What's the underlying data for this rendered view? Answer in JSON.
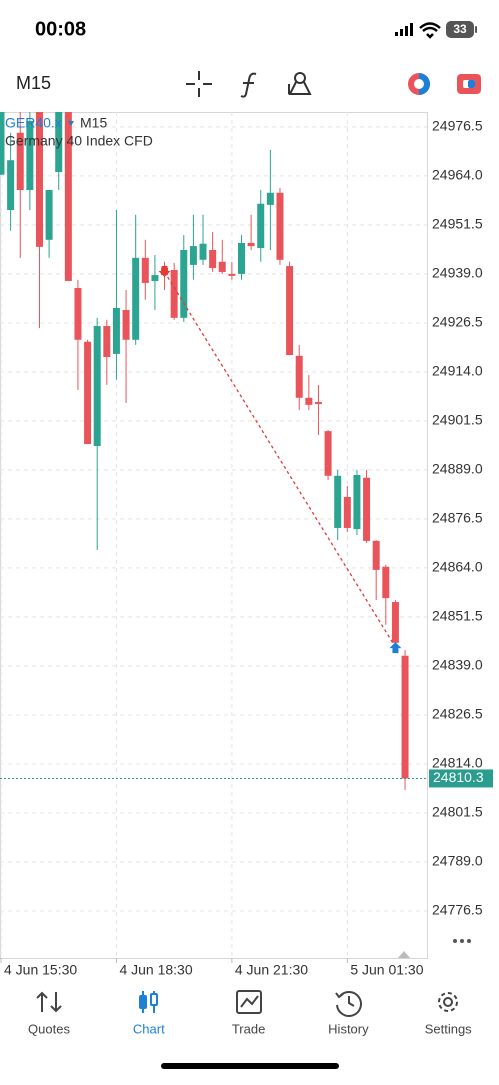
{
  "status_bar": {
    "time": "00:08",
    "battery": "33"
  },
  "toolbar": {
    "timeframe": "M15"
  },
  "chart_data": {
    "type": "candlestick",
    "symbol": "GER40.x",
    "timeframe": "M15",
    "description": "Germany 40 Index CFD",
    "categories": [
      "4 Jun 15:30",
      null,
      null,
      null,
      null,
      null,
      null,
      null,
      null,
      null,
      null,
      null,
      "4 Jun 18:30",
      null,
      null,
      null,
      null,
      null,
      null,
      null,
      null,
      null,
      null,
      null,
      "4 Jun 21:30",
      null,
      null,
      null,
      null,
      null,
      null,
      null,
      null,
      null,
      null,
      null,
      "5 Jun 01:30",
      null,
      null,
      null,
      null,
      null,
      null
    ],
    "open": [
      24964.3,
      24955.3,
      24975.0,
      24960.4,
      24980.3,
      24947.7,
      24965.0,
      24980.3,
      24935.4,
      24921.7,
      24895.1,
      24925.7,
      24918.6,
      24929.8,
      24922.2,
      24943.1,
      24937.2,
      24940.5,
      24940.0,
      24927.8,
      24941.3,
      24942.6,
      24945.1,
      24942.1,
      24939.0,
      24939.0,
      24946.9,
      24945.6,
      24956.6,
      24959.7,
      24941.0,
      24918.1,
      24907.4,
      24906.3,
      24898.9,
      24874.2,
      24882.1,
      24873.9,
      24887.0,
      24870.9,
      24864.3,
      24855.3,
      24841.6
    ],
    "high": [
      24980.3,
      24975.0,
      24980.3,
      24980.3,
      24980.3,
      24960.4,
      24980.3,
      24980.3,
      24937.5,
      24922.2,
      24927.8,
      24927.3,
      24955.3,
      24934.9,
      24954.1,
      24947.7,
      24943.8,
      24942.1,
      24941.8,
      24948.9,
      24954.1,
      24954.1,
      24949.7,
      24947.7,
      24942.1,
      24948.9,
      24954.1,
      24960.4,
      24970.6,
      24960.9,
      24942.1,
      24920.9,
      24913.2,
      24910.7,
      24899.2,
      24889.0,
      24884.9,
      24889.0,
      24889.0,
      24871.1,
      24864.8,
      24855.8,
      24843.1
    ],
    "low": [
      24964.3,
      24950.0,
      24943.1,
      24955.3,
      24925.2,
      24943.1,
      24960.4,
      24937.2,
      24909.4,
      24895.6,
      24868.6,
      24910.7,
      24912.0,
      24906.1,
      24920.9,
      24932.4,
      24929.8,
      24934.9,
      24927.3,
      24926.8,
      24937.5,
      24941.3,
      24939.5,
      24939.0,
      24937.5,
      24937.5,
      24945.1,
      24942.1,
      24945.1,
      24941.3,
      24918.3,
      24904.3,
      24904.3,
      24897.9,
      24886.4,
      24871.1,
      24873.2,
      24872.4,
      24870.4,
      24855.8,
      24849.5,
      24843.1,
      24807.4
    ],
    "close": [
      24980.3,
      24968.0,
      24960.4,
      24978.0,
      24945.9,
      24960.4,
      24980.3,
      24937.2,
      24922.2,
      24895.6,
      24925.7,
      24917.8,
      24930.3,
      24922.2,
      24943.1,
      24936.7,
      24938.7,
      24938.7,
      24927.8,
      24945.1,
      24946.1,
      24946.7,
      24940.5,
      24939.5,
      24938.5,
      24946.9,
      24946.1,
      24956.9,
      24959.7,
      24942.6,
      24918.3,
      24907.4,
      24905.6,
      24905.8,
      24887.5,
      24887.5,
      24874.2,
      24887.7,
      24870.9,
      24863.5,
      24856.3,
      24844.9,
      24810.3
    ],
    "up_color": "#2ba591",
    "down_color": "#e9545a",
    "ylim": [
      24764.5,
      24980.3
    ],
    "yticks": [
      24976.5,
      {
        "value": 24964,
        "label": "24964.0"
      },
      24951.5,
      {
        "value": 24939,
        "label": "24939.0"
      },
      24926.5,
      {
        "value": 24914,
        "label": "24914.0"
      },
      24901.5,
      {
        "value": 24889,
        "label": "24889.0"
      },
      24876.5,
      {
        "value": 24864,
        "label": "24864.0"
      },
      24851.5,
      {
        "value": 24839,
        "label": "24839.0"
      },
      24826.5,
      {
        "value": 24814,
        "label": "24814.0"
      },
      24801.5,
      {
        "value": 24789,
        "label": "24789.0"
      },
      24776.5
    ],
    "grid": true,
    "last_price": 24810.3,
    "trade": {
      "entry": 24939.5,
      "exit": 24843.8
    }
  },
  "tabs": [
    {
      "label": "Quotes"
    },
    {
      "label": "Chart"
    },
    {
      "label": "Trade"
    },
    {
      "label": "History"
    },
    {
      "label": "Settings"
    }
  ],
  "active_tab": 1
}
